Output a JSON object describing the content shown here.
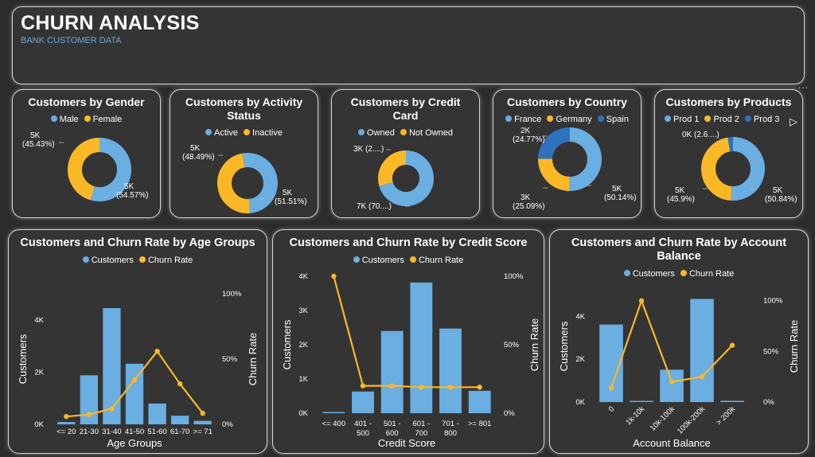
{
  "header": {
    "title": "CHURN ANALYSIS",
    "subtitle": "BANK CUSTOMER DATA",
    "more_label": "..."
  },
  "colors": {
    "blue": "#6aaee2",
    "orange": "#fbb826",
    "dark_blue": "#2d72bd",
    "card_bg": "#343434"
  },
  "donuts": [
    {
      "id": "gender",
      "title": "Customers by Gender",
      "legend": [
        "Male",
        "Female"
      ],
      "values": [
        54.57,
        45.43
      ],
      "labels": [
        [
          "5K",
          "(54.57%)"
        ],
        [
          "5K",
          "(45.43%)"
        ]
      ]
    },
    {
      "id": "activity",
      "title": "Customers by Activity Status",
      "legend": [
        "Active",
        "Inactive"
      ],
      "values": [
        51.51,
        48.49
      ],
      "labels": [
        [
          "5K",
          "(51.51%)"
        ],
        [
          "5K",
          "(48.49%)"
        ]
      ]
    },
    {
      "id": "credit_card",
      "title": "Customers by Credit Card",
      "legend": [
        "Owned",
        "Not Owned"
      ],
      "values": [
        70.55,
        29.45
      ],
      "labels": [
        [
          "7K (70....)"
        ],
        [
          "3K (2....)"
        ]
      ]
    },
    {
      "id": "country",
      "title": "Customers by Country",
      "legend": [
        "France",
        "Germany",
        "Spain"
      ],
      "values": [
        50.14,
        25.09,
        24.77
      ],
      "labels": [
        [
          "5K",
          "(50.14%)"
        ],
        [
          "3K",
          "(25.09%)"
        ],
        [
          "2K",
          "(24.77%)"
        ]
      ]
    },
    {
      "id": "products",
      "title": "Customers by Products",
      "legend": [
        "Prod 1",
        "Prod 2",
        "Prod 3"
      ],
      "values": [
        50.84,
        45.9,
        2.66
      ],
      "labels": [
        [
          "5K",
          "(50.84%)"
        ],
        [
          "5K",
          "(45.9%)"
        ],
        [
          "0K (2.6....)"
        ]
      ]
    }
  ],
  "chart_data": [
    {
      "type": "bar",
      "title": "Customers and Churn Rate by Age Groups",
      "legend": [
        "Customers",
        "Churn Rate"
      ],
      "categories": [
        "<= 20",
        "21-30",
        "31-40",
        "41-50",
        "51-60",
        "61-70",
        ">= 71"
      ],
      "series": [
        {
          "name": "Customers",
          "values": [
            89,
            1879,
            4451,
            2320,
            797,
            331,
            133
          ]
        },
        {
          "name": "Churn Rate",
          "values": [
            0.06,
            0.075,
            0.12,
            0.34,
            0.56,
            0.31,
            0.085
          ]
        }
      ],
      "xlabel": "Age Groups",
      "ylabel": "Customers",
      "y2label": "Churn Rate",
      "ylim": [
        0,
        5000
      ],
      "y2lim": [
        0,
        1
      ],
      "yticks": [
        "0K",
        "2K",
        "4K"
      ],
      "y2ticks": [
        "0%",
        "50%",
        "100%"
      ]
    },
    {
      "type": "bar",
      "title": "Customers and Churn Rate by Credit Score",
      "legend": [
        "Customers",
        "Churn Rate"
      ],
      "categories": [
        "<= 400",
        "401 - 500",
        "501 - 600",
        "601 - 700",
        "701 - 800",
        ">= 801"
      ],
      "series": [
        {
          "name": "Customers",
          "values": [
            19,
            633,
            2402,
            3818,
            2473,
            655
          ]
        },
        {
          "name": "Churn Rate",
          "values": [
            1.0,
            0.2,
            0.2,
            0.19,
            0.19,
            0.19
          ]
        }
      ],
      "xlabel": "Credit Score",
      "ylabel": "Customers",
      "y2label": "Churn Rate",
      "ylim": [
        0,
        4000
      ],
      "y2lim": [
        0,
        1
      ],
      "yticks": [
        "0K",
        "1K",
        "2K",
        "3K",
        "4K"
      ],
      "y2ticks": [
        "0%",
        "50%",
        "100%"
      ]
    },
    {
      "type": "bar",
      "title": "Customers and Churn Rate by Account Balance",
      "legend": [
        "Customers",
        "Churn Rate"
      ],
      "categories": [
        "0",
        "1k-10k",
        "10k-100k",
        "100k-200k",
        "> 200k"
      ],
      "series": [
        {
          "name": "Customers",
          "values": [
            3617,
            2,
            1510,
            4812,
            59
          ]
        },
        {
          "name": "Churn Rate",
          "values": [
            0.14,
            1.0,
            0.2,
            0.25,
            0.56
          ]
        }
      ],
      "xlabel": "Account Balance",
      "ylabel": "Customers",
      "y2label": "Churn Rate",
      "ylim": [
        0,
        5200
      ],
      "y2lim": [
        0,
        1.1
      ],
      "yticks": [
        "0K",
        "2K",
        "4K"
      ],
      "y2ticks": [
        "0%",
        "50%",
        "100%"
      ]
    }
  ]
}
